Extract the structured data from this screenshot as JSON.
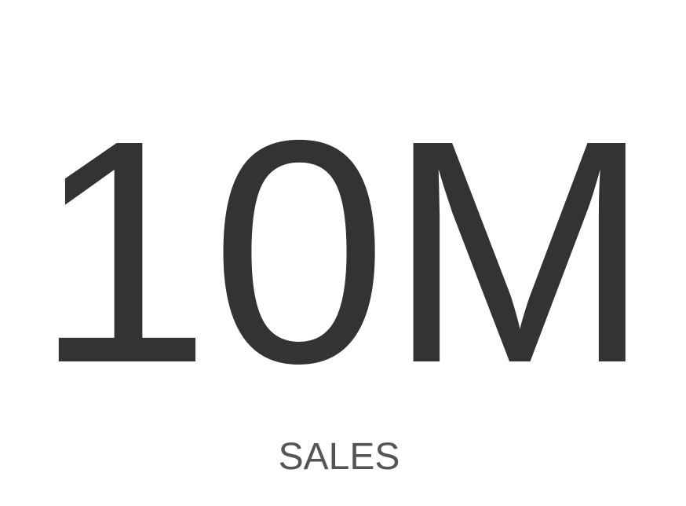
{
  "kpi": {
    "value": "10M",
    "label": "SALES"
  },
  "colors": {
    "background": "#ffffff",
    "value_text": "#333333",
    "label_text": "#555555"
  }
}
